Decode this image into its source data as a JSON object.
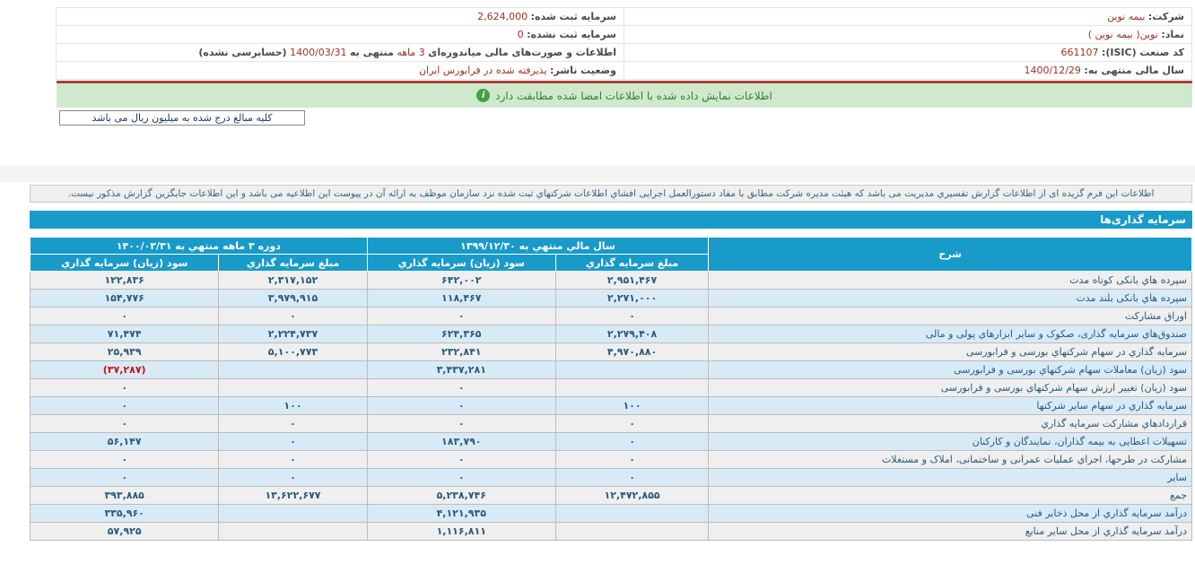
{
  "company_header": {
    "rows": [
      {
        "r_label": "شرکت:",
        "r_value": "بیمه نوین",
        "l_label": "سرمایه ثبت شده:",
        "l_value": "2,624,000"
      },
      {
        "r_label": "نماد:",
        "r_value": "نوین( بیمه نوین )",
        "l_label": "سرمایه ثبت نشده:",
        "l_value": "0"
      },
      {
        "r_label": "کد صنعت (ISIC):",
        "r_value": "661107"
      },
      {
        "r_label": "سال مالی منتهی به:",
        "r_value": "1400/12/29",
        "l_label": "وضعیت ناشر:",
        "l_value": "پذیرفته شده در فرابورس ایران"
      }
    ],
    "fs_prefix": "اطلاعات و صورت‌های مالی میاندوره‌ای",
    "fs_months": "3 ماهه",
    "fs_mid": "منتهی به",
    "fs_date": "1400/03/31",
    "fs_suffix": "(حسابرسی نشده)"
  },
  "signed_info_bar": {
    "text": "اطلاعات نمایش داده شده با اطلاعات امضا شده مطابقت دارد",
    "icon": "info-icon"
  },
  "amounts_note": {
    "text": "کلیه مبالغ درج شده به میلیون ریال می باشد"
  },
  "notice_bar": {
    "text": "اطلاعات این فرم گزیده ای از اطلاعات گزارش تفسیري مدیریت می باشد که هیئت مدیره شرکت مطابق با مفاد دستورالعمل اجرایی افشاي اطلاعات شرکتهاي ثبت شده نزد سازمان موظف به ارائه آن در پیوست این اطلاعیه می باشد و این اطلاعات جایگزین گزارش مذکور نیست."
  },
  "investments": {
    "section_title": "سرمایه گذاری‌ها",
    "columns": {
      "desc": "شرح",
      "year_group": "سال مالي منتهي به ۱۳۹۹/۱۲/۳۰",
      "period_group": "دوره ۳ ماهه منتهي به ۱۴۰۰/۰۳/۳۱",
      "amount": "مبلغ سرمایه گذاري",
      "profit": "سود (زیان) سرمایه گذاري"
    },
    "rows": [
      {
        "desc": "سپرده هاي بانکی کوتاه مدت",
        "y_amount": "۲,۹۵۱,۴۶۷",
        "y_profit": "۶۴۲,۰۰۲",
        "p_amount": "۲,۳۱۷,۱۵۲",
        "p_profit": "۱۲۲,۸۳۶"
      },
      {
        "desc": "سپرده هاي بانکی بلند مدت",
        "y_amount": "۲,۲۷۱,۰۰۰",
        "y_profit": "۱۱۸,۴۶۷",
        "p_amount": "۳,۹۷۹,۹۱۵",
        "p_profit": "۱۵۴,۷۷۶"
      },
      {
        "desc": "اوراق مشارکت",
        "y_amount": "۰",
        "y_profit": "۰",
        "p_amount": "۰",
        "p_profit": "۰"
      },
      {
        "desc": "صندوق‌هاي سرمایه گذاری، صکوک و سایر ابزارهاي پولی و مالی",
        "y_amount": "۲,۲۷۹,۴۰۸",
        "y_profit": "۶۲۴,۳۶۵",
        "p_amount": "۲,۲۲۴,۷۳۷",
        "p_profit": "۷۱,۴۷۴"
      },
      {
        "desc": "سرمایه گذاري در سهام شرکتهاي بورسی و فرابورسی",
        "y_amount": "۴,۹۷۰,۸۸۰",
        "y_profit": "۲۳۲,۸۴۱",
        "p_amount": "۵,۱۰۰,۷۷۳",
        "p_profit": "۲۵,۹۳۹"
      },
      {
        "desc": "سود (زیان) معاملات سهام شرکتهاي بورسی و فرابورسی",
        "y_amount": "",
        "y_profit": "۳,۴۳۷,۲۸۱",
        "p_amount": "",
        "p_profit": "(۳۷,۲۸۷)"
      },
      {
        "desc": "سود (زیان) تغییر ارزش سهام شرکتهاي بورسی و فرابورسی",
        "y_amount": "",
        "y_profit": "۰",
        "p_amount": "",
        "p_profit": "۰"
      },
      {
        "desc": "سرمایه گذاري در سهام سایر شرکتها",
        "y_amount": "۱۰۰",
        "y_profit": "۰",
        "p_amount": "۱۰۰",
        "p_profit": "۰"
      },
      {
        "desc": "قراردادهاي مشارکت سرمایه گذاري",
        "y_amount": "۰",
        "y_profit": "۰",
        "p_amount": "۰",
        "p_profit": "۰"
      },
      {
        "desc": "تسهیلات اعطایی به بیمه گذاران، نمایندگان و کارکنان",
        "y_amount": "۰",
        "y_profit": "۱۸۳,۷۹۰",
        "p_amount": "۰",
        "p_profit": "۵۶,۱۴۷"
      },
      {
        "desc": "مشارکت در طرحها، اجراي عملیات عمرانی و ساختمانی، املاک و مستغلات",
        "y_amount": "۰",
        "y_profit": "۰",
        "p_amount": "۰",
        "p_profit": "۰"
      },
      {
        "desc": "سایر",
        "y_amount": "۰",
        "y_profit": "۰",
        "p_amount": "۰",
        "p_profit": "۰"
      },
      {
        "desc": "جمع",
        "y_amount": "۱۲,۴۷۲,۸۵۵",
        "y_profit": "۵,۲۳۸,۷۴۶",
        "p_amount": "۱۳,۶۲۲,۶۷۷",
        "p_profit": "۳۹۳,۸۸۵"
      },
      {
        "desc": "درآمد سرمایه گذاري از محل ذخایر فنی",
        "y_amount": "",
        "y_profit": "۴,۱۲۱,۹۳۵",
        "p_amount": "",
        "p_profit": "۳۳۵,۹۶۰"
      },
      {
        "desc": "درآمد سرمایه گذاري از محل سایر منابع",
        "y_amount": "",
        "y_profit": "۱,۱۱۶,۸۱۱",
        "p_amount": "",
        "p_profit": "۵۷,۹۲۵"
      }
    ]
  },
  "colors": {
    "header_teal": "#199bc9",
    "stripe_blue": "#d9eaf7",
    "stripe_gray": "#efefef",
    "value_maroon": "#9c3226",
    "negative_red": "#cc1111",
    "signed_bar_green": "#cfe9cd",
    "divider_maroon": "#a8423a"
  }
}
